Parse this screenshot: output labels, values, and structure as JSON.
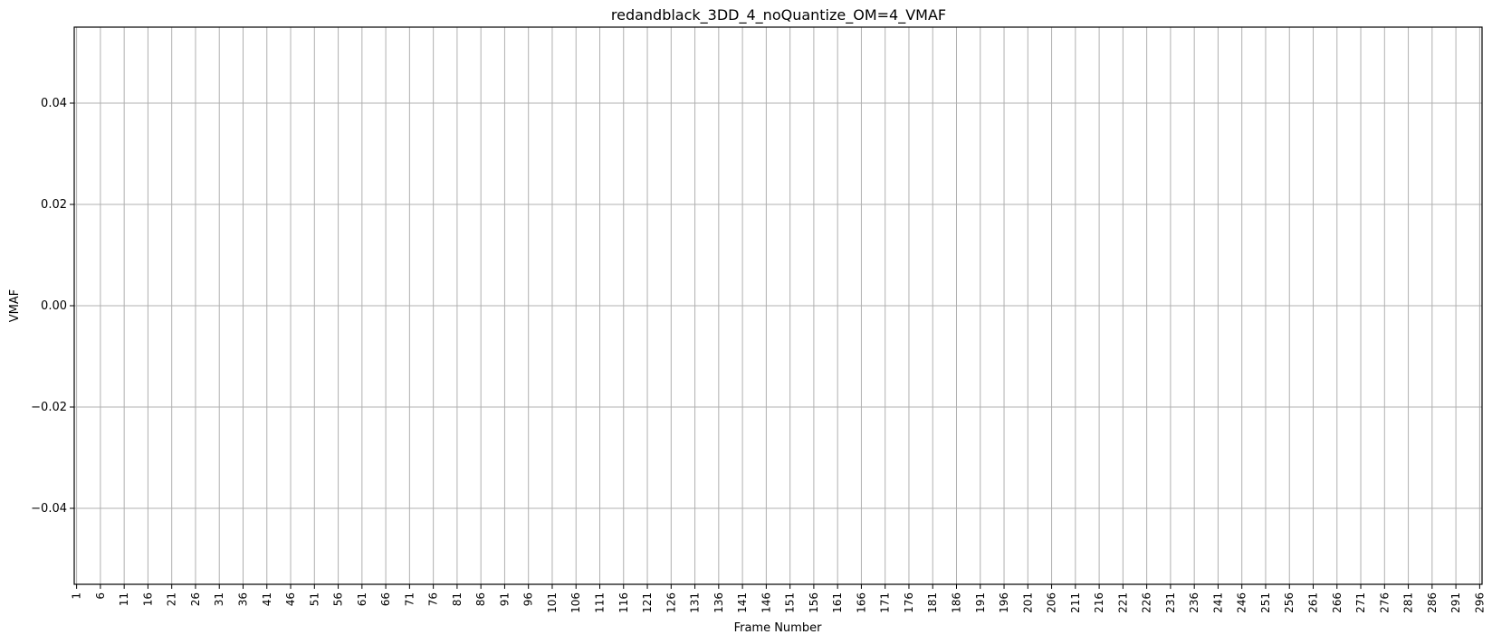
{
  "chart_data": {
    "type": "line",
    "title": "redandblack_3DD_4_noQuantize_OM=4_VMAF",
    "xlabel": "Frame Number",
    "ylabel": "VMAF",
    "xlim": [
      0.5,
      296.5
    ],
    "ylim": [
      -0.055,
      0.055
    ],
    "x_ticks": [
      1,
      6,
      11,
      16,
      21,
      26,
      31,
      36,
      41,
      46,
      51,
      56,
      61,
      66,
      71,
      76,
      81,
      86,
      91,
      96,
      101,
      106,
      111,
      116,
      121,
      126,
      131,
      136,
      141,
      146,
      151,
      156,
      161,
      166,
      171,
      176,
      181,
      186,
      191,
      196,
      201,
      206,
      211,
      216,
      221,
      226,
      231,
      236,
      241,
      246,
      251,
      256,
      261,
      266,
      271,
      276,
      281,
      286,
      291,
      296
    ],
    "y_ticks": [
      0.04,
      0.02,
      0.0,
      -0.02,
      -0.04
    ],
    "y_tick_labels": [
      "0.04",
      "0.02",
      "0.00",
      "−0.02",
      "−0.04"
    ],
    "grid": true,
    "series": []
  },
  "colors": {
    "grid": "#b0b0b0",
    "axis": "#000000"
  }
}
